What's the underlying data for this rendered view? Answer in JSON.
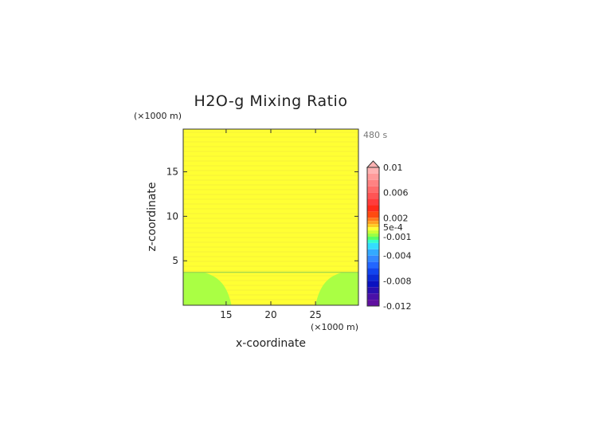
{
  "chart_data": {
    "type": "heatmap",
    "title": "H2O-g Mixing Ratio",
    "xlabel": "x-coordinate",
    "ylabel": "z-coordinate",
    "x_unit": "(×1000 m)",
    "z_unit": "(×1000 m)",
    "time_label": "480 s",
    "xlim": [
      10.2,
      29.8
    ],
    "ylim": [
      0,
      19.8
    ],
    "x_ticks": [
      15,
      20,
      25
    ],
    "x_tick_labels": [
      "15",
      "20",
      "25"
    ],
    "y_ticks": [
      5,
      10,
      15
    ],
    "y_tick_labels": [
      "5",
      "10",
      "15"
    ],
    "field": {
      "background_value_range": [
        0.0005,
        0.001
      ],
      "background_color": "#ffff33",
      "lower_value_range": [
        -0.001,
        0
      ],
      "lower_color": "#aaff44",
      "lower_top_z": 3.7,
      "lower_hollow_x": [
        15.6,
        25.0
      ],
      "lower_hollow_top_x": [
        12.5,
        28.0
      ]
    },
    "colorbar": {
      "tick_labels": [
        "0.01",
        "0.006",
        "0.002",
        "5e-4",
        "-0.001",
        "-0.004",
        "-0.008",
        "-0.012"
      ],
      "tick_values": [
        0.01,
        0.006,
        0.002,
        0.0005,
        -0.001,
        -0.004,
        -0.008,
        -0.012
      ],
      "levels": [
        {
          "value": 0.01,
          "color": "#ffb3b3"
        },
        {
          "value": 0.009,
          "color": "#ff9a9a"
        },
        {
          "value": 0.008,
          "color": "#ff8282"
        },
        {
          "value": 0.007,
          "color": "#ff6b6b"
        },
        {
          "value": 0.006,
          "color": "#ff5454"
        },
        {
          "value": 0.005,
          "color": "#ff3c3c"
        },
        {
          "value": 0.004,
          "color": "#ff2a1a"
        },
        {
          "value": 0.003,
          "color": "#ff4a10"
        },
        {
          "value": 0.002,
          "color": "#ff7a1a"
        },
        {
          "value": 0.0015,
          "color": "#ffa020"
        },
        {
          "value": 0.001,
          "color": "#ffcc22"
        },
        {
          "value": 0.0005,
          "color": "#ffff33"
        },
        {
          "value": 0,
          "color": "#ccff33"
        },
        {
          "value": -0.0005,
          "color": "#99ff44"
        },
        {
          "value": -0.001,
          "color": "#55ff66"
        },
        {
          "value": -0.0015,
          "color": "#33ffcc"
        },
        {
          "value": -0.002,
          "color": "#33ddff"
        },
        {
          "value": -0.003,
          "color": "#33aaff"
        },
        {
          "value": -0.004,
          "color": "#3388ff"
        },
        {
          "value": -0.005,
          "color": "#2266ff"
        },
        {
          "value": -0.006,
          "color": "#1144ee"
        },
        {
          "value": -0.007,
          "color": "#0a2ad6"
        },
        {
          "value": -0.008,
          "color": "#0a12c0"
        },
        {
          "value": -0.009,
          "color": "#2a10b0"
        },
        {
          "value": -0.01,
          "color": "#4a10a8"
        },
        {
          "value": -0.011,
          "color": "#6010a0"
        },
        {
          "value": -0.012,
          "color": "#7a0aa8"
        }
      ]
    }
  }
}
